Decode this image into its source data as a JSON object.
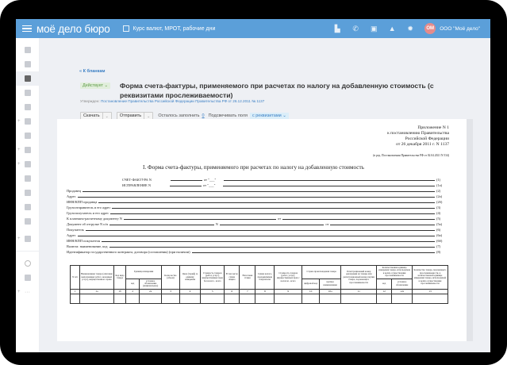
{
  "header": {
    "logo": "моё дело бюро",
    "link": "Курс валют, МРОТ, рабочие дни",
    "avatar": "ОМ",
    "org": "ООО \"Моё дело\"",
    "icons": [
      "document-icon",
      "phone-icon",
      "calendar-icon",
      "bell-icon",
      "gear-icon"
    ]
  },
  "sidebar": {
    "items": [
      "home-icon",
      "briefcase-icon",
      "forms-icon",
      "book-icon",
      "folder-icon",
      "person-icon",
      "chart-icon",
      "search-report-icon",
      "doc-icon",
      "calendar-icon",
      "doc-check-icon",
      "contacts-icon",
      "folder-star-icon",
      "doc-user-icon"
    ],
    "bottom": [
      "info-icon",
      "support-icon",
      "more-icon"
    ]
  },
  "page": {
    "back": "« К бланкам",
    "status": "Действует ⌄",
    "title": "Форма счета-фактуры, применяемого при расчетах по налогу на добавленную стоимость (с реквизитами прослеживаемости)",
    "approved_label": "Утвержден:",
    "approved_link": "Постановление Правительства Российской Федерации Правительства РФ от 26.12.2011 № 1137",
    "toolbar": {
      "download": "Скачать",
      "send": "Отправить",
      "remaining_label": "Осталось заполнить",
      "remaining": "0",
      "highlight_label": "Подсвечивать поля",
      "highlight_value": "с реквизитами"
    }
  },
  "doc": {
    "appendix": [
      "Приложение N 1",
      "к постановлению Правительства",
      "Российской Федерации",
      "от 26 декабря 2011 г. N 1137"
    ],
    "edition": "(в ред. Постановления Правительства РФ от 02.04.2021 N 534)",
    "title": "I. Форма счета-фактуры, применяемого при расчетах по налогу на добавленную стоимость",
    "invoice": {
      "label": "СЧЕТ-ФАКТУРА N",
      "from": "от \"___\"",
      "num": "(1)"
    },
    "correction": {
      "label": "ИСПРАВЛЕНИЕ N",
      "from": "от \"___\"",
      "num": "(1а)"
    },
    "fields": [
      {
        "label": "Продавец",
        "num": "(2)"
      },
      {
        "label": "Адрес",
        "num": "(2а)"
      },
      {
        "label": "ИНН/КПП продавца",
        "num": "(2б)"
      },
      {
        "label": "Грузоотправитель и его адрес",
        "num": "(3)"
      },
      {
        "label": "Грузополучатель и его адрес",
        "num": "(4)"
      },
      {
        "label": "К платежно-расчетному документу N",
        "mid": "от",
        "num": "(5)"
      },
      {
        "label": "Документ об отгрузке N п/п",
        "mid": "N",
        "mid2": "от",
        "num": "(5а)"
      },
      {
        "label": "Покупатель",
        "num": "(6)"
      },
      {
        "label": "Адрес",
        "num": "(6а)"
      },
      {
        "label": "ИНН/КПП покупателя",
        "num": "(6б)"
      },
      {
        "label": "Валюта: наименование, код",
        "num": "(7)"
      },
      {
        "label": "Идентификатор государственного контракта, договора (соглашения) (при наличии)",
        "num": "(8)"
      }
    ],
    "table": {
      "h": [
        "N п/п",
        "Наименование товара (описание выполненных работ, оказанных услуг), имущественного права",
        "Код вида товара",
        "Единица измерения",
        "Коли-чество (объем)",
        "Цена (тариф) за единицу измерения",
        "Стоимость товаров (работ, услуг), имущественных прав без налога - всего",
        "В том числе сумма акциза",
        "Налоговая ставка",
        "Сумма налога, предъявляемая покупателю",
        "Стоимость товаров (работ, услуг), имущественных прав с налогом - всего",
        "Страна происхождения товара",
        "Регистрационный номер декларации на товары или регистрационный номер партии товара, подлежащего прослеживаемости",
        "Количественная единица измерения товара, используемая в целях осуществления прослеживаемости",
        "Количество товара, подлежащего прослеживаемости, в количественной единице измерения товара, используемой в целях осуществления прослеживаемости"
      ],
      "sub": [
        "код",
        "условное обозначение (национальное)",
        "цифровой код",
        "краткое наименование",
        "код",
        "условное обозначение"
      ],
      "nums": [
        "1",
        "1а",
        "1б",
        "2",
        "2а",
        "3",
        "4",
        "5",
        "6",
        "7",
        "8",
        "9",
        "10",
        "10а",
        "11",
        "12",
        "12а",
        "13"
      ]
    }
  }
}
